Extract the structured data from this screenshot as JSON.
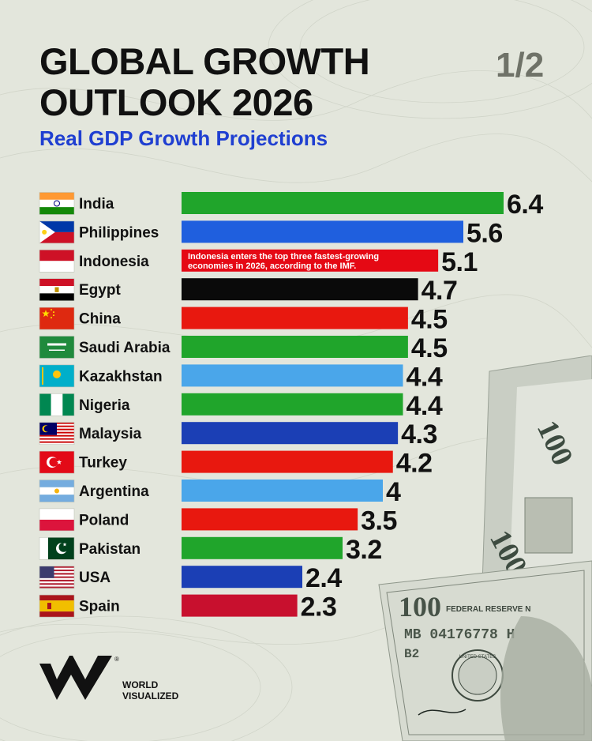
{
  "header": {
    "title_line1": "GLOBAL GROWTH",
    "title_line2": "OUTLOOK 2026",
    "page_indicator": "1/2",
    "subtitle": "Real GDP Growth Projections"
  },
  "annotation": {
    "line1": "Indonesia enters the top three fastest-growing",
    "line2": "economies in 2026, according to the IMF."
  },
  "brand": {
    "line1": "WORLD",
    "line2": "VISUALIZED"
  },
  "banknote": {
    "denomination": "100",
    "serial": "MB 04176778 H",
    "bank_code": "B2",
    "federal_reserve": "FEDERAL RESERVE N",
    "seal_text": "UNITED STATES"
  },
  "chart_data": {
    "type": "bar",
    "orientation": "horizontal",
    "title": "GLOBAL GROWTH OUTLOOK 2026",
    "subtitle": "Real GDP Growth Projections",
    "xlabel": "",
    "ylabel": "",
    "xlim": [
      0,
      6.4
    ],
    "grid": false,
    "categories": [
      "India",
      "Philippines",
      "Indonesia",
      "Egypt",
      "China",
      "Saudi Arabia",
      "Kazakhstan",
      "Nigeria",
      "Malaysia",
      "Turkey",
      "Argentina",
      "Poland",
      "Pakistan",
      "USA",
      "Spain"
    ],
    "values": [
      6.4,
      5.6,
      5.1,
      4.7,
      4.5,
      4.5,
      4.4,
      4.4,
      4.3,
      4.2,
      4,
      3.5,
      3.2,
      2.4,
      2.3
    ],
    "value_labels": [
      "6.4",
      "5.6",
      "5.1",
      "4.7",
      "4.5",
      "4.5",
      "4.4",
      "4.4",
      "4.3",
      "4.2",
      "4",
      "3.5",
      "3.2",
      "2.4",
      "2.3"
    ],
    "bar_colors": [
      "#20a52b",
      "#1f5fde",
      "#e50914",
      "#0a0a0a",
      "#e8180f",
      "#20a52b",
      "#4aa6ea",
      "#20a52b",
      "#1b3fb5",
      "#e8180f",
      "#4aa6ea",
      "#e8180f",
      "#20a52b",
      "#1b3fb5",
      "#c8102e"
    ],
    "flags": [
      "india-flag",
      "philippines-flag",
      "indonesia-flag",
      "egypt-flag",
      "china-flag",
      "saudi-arabia-flag",
      "kazakhstan-flag",
      "nigeria-flag",
      "malaysia-flag",
      "turkey-flag",
      "argentina-flag",
      "poland-flag",
      "pakistan-flag",
      "usa-flag",
      "spain-flag"
    ]
  }
}
